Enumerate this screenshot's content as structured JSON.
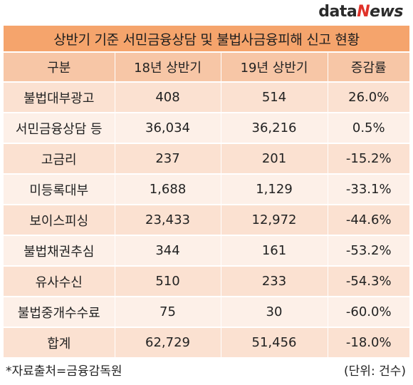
{
  "logo": {
    "data": "data",
    "n": "N",
    "ews": "ews"
  },
  "title": "상반기 기준 서민금융상담 및 불법사금융피해 신고 현황",
  "table": {
    "headers": [
      "구분",
      "18년 상반기",
      "19년 상반기",
      "증감률"
    ],
    "rows": [
      [
        "불법대부광고",
        "408",
        "514",
        "26.0%"
      ],
      [
        "서민금융상담 등",
        "36,034",
        "36,216",
        "0.5%"
      ],
      [
        "고금리",
        "237",
        "201",
        "-15.2%"
      ],
      [
        "미등록대부",
        "1,688",
        "1,129",
        "-33.1%"
      ],
      [
        "보이스피싱",
        "23,433",
        "12,972",
        "-44.6%"
      ],
      [
        "불법채권추심",
        "344",
        "161",
        "-53.2%"
      ],
      [
        "유사수신",
        "510",
        "233",
        "-54.3%"
      ],
      [
        "불법중개수수료",
        "75",
        "30",
        "-60.0%"
      ],
      [
        "합계",
        "62,729",
        "51,456",
        "-18.0%"
      ]
    ]
  },
  "footer": {
    "source": "*자료출처=금융감독원",
    "unit": "(단위: 건수)"
  }
}
